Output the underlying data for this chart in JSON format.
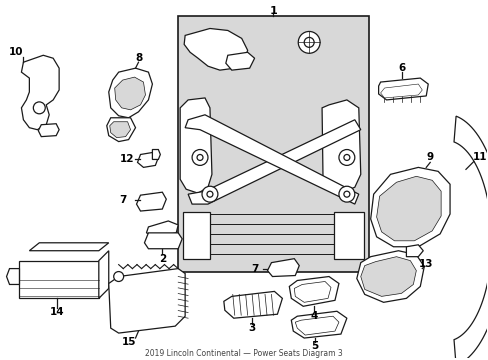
{
  "background_color": "#ffffff",
  "line_color": "#1a1a1a",
  "shade_color": "#d8d8d8",
  "fig_width": 4.89,
  "fig_height": 3.6,
  "dpi": 100
}
